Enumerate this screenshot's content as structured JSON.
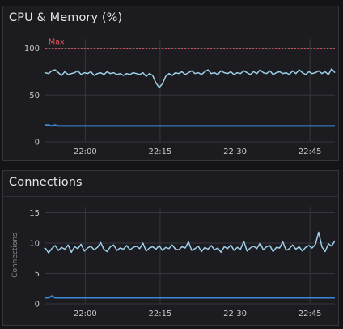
{
  "panels": [
    {
      "title": "CPU & Memory (%)",
      "threshold_label": "Max",
      "colors": {
        "series_top": "#9fd0ea",
        "series_bottom": "#3b86d6",
        "threshold": "#e2535c"
      },
      "chart_data": {
        "type": "line",
        "title": "CPU & Memory (%)",
        "x_ticks": [
          "22:00",
          "22:15",
          "22:30",
          "22:45"
        ],
        "y_ticks": [
          "0",
          "50",
          "100"
        ],
        "ylim": [
          0,
          110
        ],
        "xlim_minutes": [
          -8,
          50
        ],
        "threshold": {
          "label": "Max",
          "value": 100
        },
        "grid": true,
        "series": [
          {
            "values_minutes_start": -8,
            "values_minutes_end": 50,
            "values": [
              74,
              73,
              76,
              77,
              74,
              71,
              75,
              72,
              73,
              74,
              76,
              72,
              74,
              73,
              75,
              71,
              73,
              74,
              72,
              75,
              73,
              74,
              72,
              73,
              71,
              73,
              72,
              74,
              73,
              72,
              74,
              70,
              73,
              71,
              63,
              58,
              62,
              70,
              73,
              71,
              74,
              73,
              75,
              72,
              74,
              76,
              73,
              74,
              72,
              75,
              77,
              73,
              74,
              72,
              76,
              74,
              73,
              75,
              72,
              74,
              73,
              76,
              74,
              72,
              75,
              73,
              77,
              74,
              73,
              76,
              72,
              74,
              75,
              73,
              74,
              72,
              76,
              73,
              77,
              74,
              72,
              75,
              73,
              74,
              76,
              73,
              75,
              72,
              78,
              74
            ]
          },
          {
            "values_minutes_start": -8,
            "values_minutes_end": 50,
            "values": [
              18,
              18,
              17,
              18,
              17,
              17,
              17,
              17,
              17,
              17,
              17,
              17,
              17,
              17,
              17,
              17,
              17,
              17,
              17,
              17,
              17,
              17,
              17,
              17,
              17,
              17,
              17,
              17,
              17,
              17,
              17,
              17,
              17,
              17,
              17,
              17,
              17,
              17,
              17,
              17,
              17,
              17,
              17,
              17,
              17,
              17,
              17,
              17,
              17,
              17,
              17,
              17,
              17,
              17,
              17,
              17,
              17,
              17,
              17,
              17,
              17,
              17,
              17,
              17,
              17,
              17,
              17,
              17,
              17,
              17,
              17,
              17,
              17,
              17,
              17,
              17,
              17,
              17,
              17,
              17,
              17,
              17,
              17,
              17,
              17,
              17,
              17,
              17,
              17,
              17
            ]
          }
        ]
      }
    },
    {
      "title": "Connections",
      "colors": {
        "series_top": "#9fd0ea",
        "series_bottom": "#3b86d6"
      },
      "chart_data": {
        "type": "line",
        "title": "Connections",
        "ylabel": "Connections",
        "x_ticks": [
          "22:00",
          "22:15",
          "22:30",
          "22:45"
        ],
        "y_ticks": [
          "0",
          "5",
          "10",
          "15"
        ],
        "ylim": [
          0,
          16
        ],
        "xlim_minutes": [
          -8,
          50
        ],
        "grid": true,
        "series": [
          {
            "values_minutes_start": -8,
            "values_minutes_end": 50,
            "values": [
              9.2,
              8.4,
              9.1,
              9.6,
              8.8,
              9.3,
              9.0,
              9.7,
              8.5,
              9.4,
              9.1,
              9.8,
              8.7,
              9.2,
              9.5,
              8.9,
              9.3,
              10.1,
              9.0,
              8.6,
              9.4,
              9.7,
              8.8,
              9.2,
              9.0,
              9.6,
              8.9,
              9.3,
              9.5,
              9.1,
              10.0,
              8.7,
              9.2,
              9.4,
              9.0,
              9.6,
              8.8,
              9.3,
              9.1,
              9.7,
              9.0,
              8.9,
              9.4,
              9.2,
              10.2,
              8.8,
              9.1,
              9.5,
              8.6,
              9.3,
              9.0,
              9.6,
              8.9,
              9.2,
              8.5,
              9.4,
              9.1,
              9.7,
              8.8,
              9.3,
              9.0,
              10.3,
              8.7,
              9.2,
              9.5,
              9.1,
              10.0,
              8.9,
              9.4,
              9.6,
              8.6,
              9.3,
              9.2,
              10.2,
              8.8,
              9.1,
              9.7,
              9.0,
              9.4,
              8.7,
              9.3,
              9.6,
              9.2,
              9.8,
              11.8,
              9.4,
              8.6,
              9.9,
              9.5,
              10.4
            ]
          },
          {
            "values_minutes_start": -8,
            "values_minutes_end": 50,
            "values": [
              1.0,
              1.0,
              1.3,
              1.0,
              1.0,
              1.0,
              1.0,
              1.0,
              1.0,
              1.0,
              1.0,
              1.0,
              1.0,
              1.0,
              1.0,
              1.0,
              1.0,
              1.0,
              1.0,
              1.0,
              1.0,
              1.0,
              1.0,
              1.0,
              1.0,
              1.0,
              1.0,
              1.0,
              1.0,
              1.0,
              1.0,
              1.0,
              1.0,
              1.0,
              1.0,
              1.0,
              1.0,
              1.0,
              1.0,
              1.0,
              1.0,
              1.0,
              1.0,
              1.0,
              1.0,
              1.0,
              1.0,
              1.0,
              1.0,
              1.0,
              1.0,
              1.0,
              1.0,
              1.0,
              1.0,
              1.0,
              1.0,
              1.0,
              1.0,
              1.0,
              1.0,
              1.0,
              1.0,
              1.0,
              1.0,
              1.0,
              1.0,
              1.0,
              1.0,
              1.0,
              1.0,
              1.0,
              1.0,
              1.0,
              1.0,
              1.0,
              1.0,
              1.0,
              1.0,
              1.0,
              1.0,
              1.0,
              1.0,
              1.0,
              1.0,
              1.0,
              1.0,
              1.0,
              1.0,
              1.0
            ]
          }
        ]
      }
    }
  ]
}
